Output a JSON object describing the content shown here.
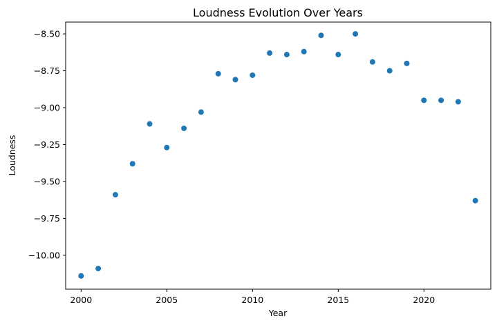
{
  "chart_data": {
    "type": "scatter",
    "title": "Loudness Evolution Over Years",
    "xlabel": "Year",
    "ylabel": "Loudness",
    "xlim": [
      1999.1,
      2023.9
    ],
    "ylim": [
      -10.23,
      -8.42
    ],
    "xticks": [
      2000,
      2005,
      2010,
      2015,
      2020
    ],
    "xtick_labels": [
      "2000",
      "2005",
      "2010",
      "2015",
      "2020"
    ],
    "yticks": [
      -8.5,
      -8.75,
      -9.0,
      -9.25,
      -9.5,
      -9.75,
      -10.0
    ],
    "ytick_labels": [
      "−8.50",
      "−8.75",
      "−9.00",
      "−9.25",
      "−9.50",
      "−9.75",
      "−10.00"
    ],
    "grid": false,
    "marker_color": "#1f77b4",
    "points": [
      {
        "x": 2000,
        "y": -10.14
      },
      {
        "x": 2001,
        "y": -10.09
      },
      {
        "x": 2002,
        "y": -9.59
      },
      {
        "x": 2003,
        "y": -9.38
      },
      {
        "x": 2004,
        "y": -9.11
      },
      {
        "x": 2005,
        "y": -9.27
      },
      {
        "x": 2006,
        "y": -9.14
      },
      {
        "x": 2007,
        "y": -9.03
      },
      {
        "x": 2008,
        "y": -8.77
      },
      {
        "x": 2009,
        "y": -8.81
      },
      {
        "x": 2010,
        "y": -8.78
      },
      {
        "x": 2011,
        "y": -8.63
      },
      {
        "x": 2012,
        "y": -8.64
      },
      {
        "x": 2013,
        "y": -8.62
      },
      {
        "x": 2014,
        "y": -8.51
      },
      {
        "x": 2015,
        "y": -8.64
      },
      {
        "x": 2016,
        "y": -8.5
      },
      {
        "x": 2017,
        "y": -8.69
      },
      {
        "x": 2018,
        "y": -8.75
      },
      {
        "x": 2019,
        "y": -8.7
      },
      {
        "x": 2020,
        "y": -8.95
      },
      {
        "x": 2021,
        "y": -8.95
      },
      {
        "x": 2022,
        "y": -8.96
      },
      {
        "x": 2023,
        "y": -9.63
      }
    ]
  }
}
